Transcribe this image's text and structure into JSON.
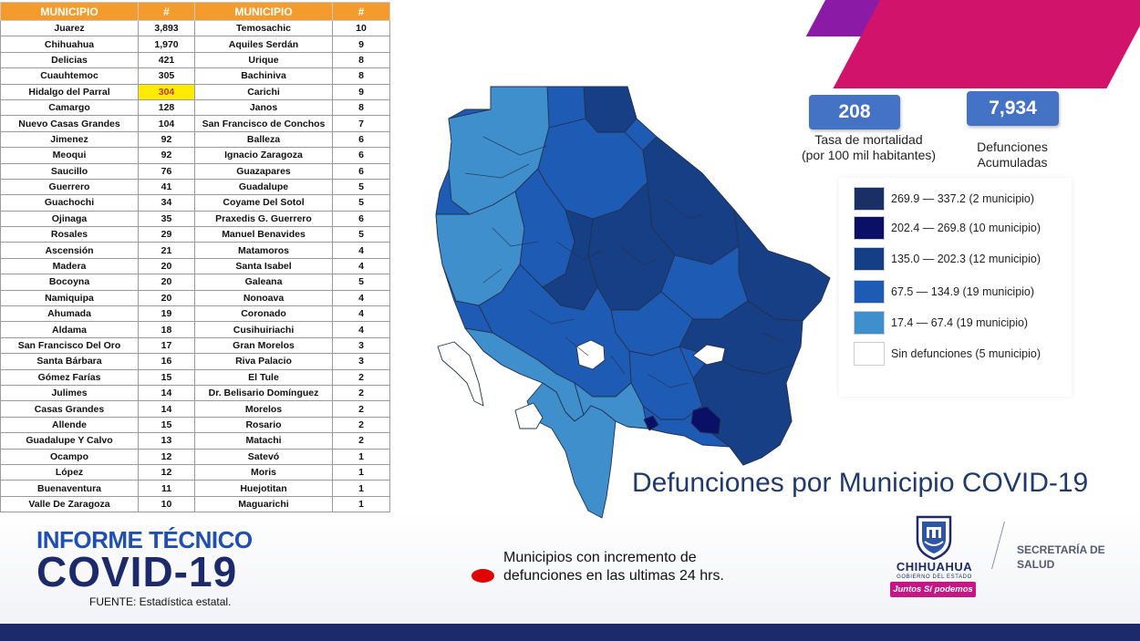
{
  "table": {
    "headers": [
      "MUNICIPIO",
      "#",
      "MUNICIPIO",
      "#"
    ],
    "left": [
      {
        "name": "Juarez",
        "value": "3,893"
      },
      {
        "name": "Chihuahua",
        "value": "1,970"
      },
      {
        "name": "Delicias",
        "value": "421"
      },
      {
        "name": "Cuauhtemoc",
        "value": "305"
      },
      {
        "name": "Hidalgo del Parral",
        "value": "304",
        "highlight": true
      },
      {
        "name": "Camargo",
        "value": "128"
      },
      {
        "name": "Nuevo Casas Grandes",
        "value": "104"
      },
      {
        "name": "Jimenez",
        "value": "92"
      },
      {
        "name": "Meoqui",
        "value": "92"
      },
      {
        "name": "Saucillo",
        "value": "76"
      },
      {
        "name": "Guerrero",
        "value": "41"
      },
      {
        "name": "Guachochi",
        "value": "34"
      },
      {
        "name": "Ojinaga",
        "value": "35"
      },
      {
        "name": "Rosales",
        "value": "29"
      },
      {
        "name": "Ascensión",
        "value": "21"
      },
      {
        "name": "Madera",
        "value": "20"
      },
      {
        "name": "Bocoyna",
        "value": "20"
      },
      {
        "name": "Namiquipa",
        "value": "20"
      },
      {
        "name": "Ahumada",
        "value": "19"
      },
      {
        "name": "Aldama",
        "value": "18"
      },
      {
        "name": "San Francisco Del Oro",
        "value": "17"
      },
      {
        "name": "Santa Bárbara",
        "value": "16"
      },
      {
        "name": "Gómez Farías",
        "value": "15"
      },
      {
        "name": "Julimes",
        "value": "14"
      },
      {
        "name": "Casas Grandes",
        "value": "14"
      },
      {
        "name": "Allende",
        "value": "15"
      },
      {
        "name": "Guadalupe Y Calvo",
        "value": "13"
      },
      {
        "name": "Ocampo",
        "value": "12"
      },
      {
        "name": "López",
        "value": "12"
      },
      {
        "name": "Buenaventura",
        "value": "11"
      },
      {
        "name": "Valle De Zaragoza",
        "value": "10"
      }
    ],
    "right": [
      {
        "name": "Temosachic",
        "value": "10"
      },
      {
        "name": "Aquiles Serdán",
        "value": "9"
      },
      {
        "name": "Urique",
        "value": "8"
      },
      {
        "name": "Bachiniva",
        "value": "8"
      },
      {
        "name": "Carichi",
        "value": "9"
      },
      {
        "name": "Janos",
        "value": "8"
      },
      {
        "name": "San Francisco de Conchos",
        "value": "7"
      },
      {
        "name": "Balleza",
        "value": "6"
      },
      {
        "name": "Ignacio Zaragoza",
        "value": "6"
      },
      {
        "name": "Guazapares",
        "value": "6"
      },
      {
        "name": "Guadalupe",
        "value": "5"
      },
      {
        "name": "Coyame Del Sotol",
        "value": "5"
      },
      {
        "name": "Praxedis G. Guerrero",
        "value": "6"
      },
      {
        "name": "Manuel Benavides",
        "value": "5"
      },
      {
        "name": "Matamoros",
        "value": "4"
      },
      {
        "name": "Santa Isabel",
        "value": "4"
      },
      {
        "name": "Galeana",
        "value": "5"
      },
      {
        "name": "Nonoava",
        "value": "4"
      },
      {
        "name": "Coronado",
        "value": "4"
      },
      {
        "name": "Cusihuiriachi",
        "value": "4"
      },
      {
        "name": "Gran Morelos",
        "value": "3"
      },
      {
        "name": "Riva Palacio",
        "value": "3"
      },
      {
        "name": "El Tule",
        "value": "2"
      },
      {
        "name": "Dr. Belisario Domínguez",
        "value": "2"
      },
      {
        "name": "Morelos",
        "value": "2"
      },
      {
        "name": "Rosario",
        "value": "2"
      },
      {
        "name": "Matachi",
        "value": "2"
      },
      {
        "name": "Satevó",
        "value": "1"
      },
      {
        "name": "Moris",
        "value": "1"
      },
      {
        "name": "Huejotitan",
        "value": "1"
      },
      {
        "name": "Maguarichi",
        "value": "1"
      }
    ]
  },
  "stats": {
    "mortality_value": "208",
    "mortality_caption_1": "Tasa de mortalidad",
    "mortality_caption_2": "(por 100 mil habitantes)",
    "deaths_value": "7,934",
    "deaths_caption_1": "Defunciones",
    "deaths_caption_2": "Acumuladas"
  },
  "legend": [
    {
      "label": "269.9 — 337.2 (2 municipio)",
      "color": "#1a2f66"
    },
    {
      "label": "202.4 — 269.8 (10 municipio)",
      "color": "#0a1066"
    },
    {
      "label": "135.0 — 202.3 (12 municipio)",
      "color": "#143e86"
    },
    {
      "label": "67.5 — 134.9 (19 municipio)",
      "color": "#1e5bb5"
    },
    {
      "label": "17.4 — 67.4 (19 municipio)",
      "color": "#3f8fcc"
    },
    {
      "label": "Sin defunciones (5 municipio)",
      "color": "#ffffff"
    }
  ],
  "map_colors": {
    "darkest": "#0a1066",
    "dark": "#163f85",
    "mid": "#1e5bb5",
    "light": "#3f8fcc",
    "none": "#ffffff",
    "border": "#23314f"
  },
  "map_title": "Defunciones por Municipio COVID-19",
  "branding": {
    "informe_line_1": "INFORME TÉCNICO",
    "informe_line_2": "COVID-19",
    "fuente": "FUENTE:  Estadística estatal.",
    "gov_name": "CHIHUAHUA",
    "gov_sub": "GOBIERNO DEL ESTADO",
    "gov_badge": "Juntos Sí podemos",
    "secretaria_1": "SECRETARÍA DE",
    "secretaria_2": "SALUD"
  },
  "note": {
    "line_1": "Municipios con incremento de",
    "line_2": "defunciones en las ultimas 24 hrs.",
    "dot_color": "#e10000"
  }
}
